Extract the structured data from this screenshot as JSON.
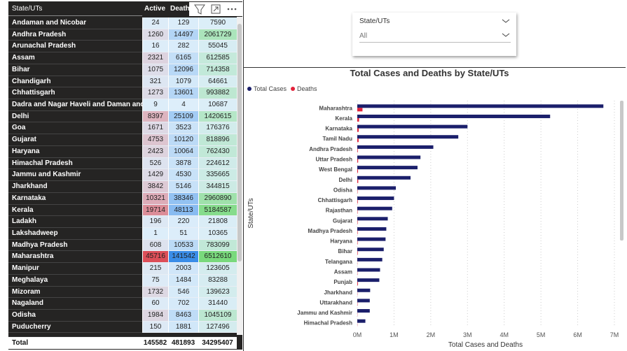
{
  "table": {
    "headers": [
      "State/UTs",
      "Active",
      "Deaths"
    ],
    "rows": [
      [
        "Andaman and Nicobar",
        24,
        129,
        7590
      ],
      [
        "Andhra Pradesh",
        1260,
        14497,
        2061729
      ],
      [
        "Arunachal Pradesh",
        16,
        282,
        55045
      ],
      [
        "Assam",
        2321,
        6165,
        612585
      ],
      [
        "Bihar",
        1075,
        12096,
        714358
      ],
      [
        "Chandigarh",
        321,
        1079,
        64661
      ],
      [
        "Chhattisgarh",
        1273,
        13601,
        993882
      ],
      [
        "Dadra and Nagar Haveli and Daman and Diu",
        9,
        4,
        10687
      ],
      [
        "Delhi",
        8397,
        25109,
        1420615
      ],
      [
        "Goa",
        1671,
        3523,
        176376
      ],
      [
        "Gujarat",
        4753,
        10120,
        818896
      ],
      [
        "Haryana",
        2423,
        10064,
        762430
      ],
      [
        "Himachal Pradesh",
        526,
        3878,
        224612
      ],
      [
        "Jammu and Kashmir",
        1429,
        4530,
        335665
      ],
      [
        "Jharkhand",
        3842,
        5146,
        344815
      ],
      [
        "Karnataka",
        10321,
        38346,
        2960890
      ],
      [
        "Kerala",
        19714,
        48113,
        5184587
      ],
      [
        "Ladakh",
        196,
        220,
        21808
      ],
      [
        "Lakshadweep",
        1,
        51,
        10365
      ],
      [
        "Madhya Pradesh",
        608,
        10533,
        783099
      ],
      [
        "Maharashtra",
        45716,
        141542,
        6512610
      ],
      [
        "Manipur",
        215,
        2003,
        123605
      ],
      [
        "Meghalaya",
        75,
        1484,
        83288
      ],
      [
        "Mizoram",
        1732,
        546,
        139623
      ],
      [
        "Nagaland",
        60,
        702,
        31440
      ],
      [
        "Odisha",
        1984,
        8463,
        1045109
      ],
      [
        "Puducherry",
        150,
        1881,
        127496
      ]
    ],
    "total": [
      "Total",
      145582,
      481893,
      34295407
    ]
  },
  "slicer": {
    "label": "State/UTs",
    "value": "All"
  },
  "chart_data": {
    "type": "hbar",
    "title": "Total Cases and Deaths by State/UTs",
    "x_label": "Total Cases and Deaths",
    "y_label": "State/UTs",
    "categories": [
      "Maharashtra",
      "Kerala",
      "Karnataka",
      "Tamil Nadu",
      "Andhra Pradesh",
      "Uttar Pradesh",
      "West Bengal",
      "Delhi",
      "Odisha",
      "Chhattisgarh",
      "Rajasthan",
      "Gujarat",
      "Madhya Pradesh",
      "Haryana",
      "Bihar",
      "Telangana",
      "Assam",
      "Punjab",
      "Jharkhand",
      "Uttarakhand",
      "Jammu and Kashmir",
      "Himachal Pradesh"
    ],
    "series": [
      {
        "name": "Total Cases",
        "color": "#1b1f6b",
        "values": [
          6700000,
          5250000,
          3000000,
          2750000,
          2070000,
          1720000,
          1640000,
          1450000,
          1050000,
          1000000,
          950000,
          830000,
          790000,
          770000,
          720000,
          680000,
          620000,
          600000,
          350000,
          340000,
          340000,
          220000
        ]
      },
      {
        "name": "Deaths",
        "color": "#e3223a",
        "values": [
          141542,
          48113,
          38346,
          36000,
          14497,
          22900,
          19700,
          25109,
          8463,
          13601,
          8950,
          10120,
          10533,
          10064,
          12096,
          4100,
          6165,
          16600,
          5146,
          7400,
          4530,
          3878
        ]
      }
    ],
    "xlim": [
      0,
      7000000
    ],
    "xticks": [
      {
        "value": 0,
        "label": "0M"
      },
      {
        "value": 1000000,
        "label": "1M"
      },
      {
        "value": 2000000,
        "label": "2M"
      },
      {
        "value": 3000000,
        "label": "3M"
      },
      {
        "value": 4000000,
        "label": "4M"
      },
      {
        "value": 5000000,
        "label": "5M"
      },
      {
        "value": 6000000,
        "label": "6M"
      },
      {
        "value": 7000000,
        "label": "7M"
      }
    ],
    "grid": true,
    "legend": "top-left"
  }
}
